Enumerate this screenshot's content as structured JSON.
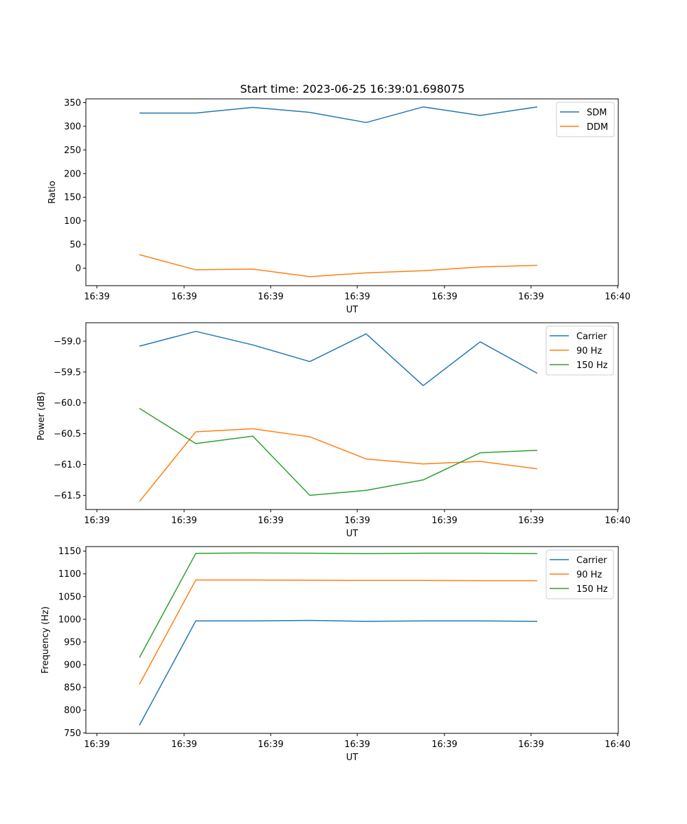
{
  "figure": {
    "title": "Start time: 2023-06-25 16:39:01.698075"
  },
  "colors": {
    "blue": "#1f77b4",
    "orange": "#ff7f0e",
    "green": "#2ca02c"
  },
  "chart_data": [
    {
      "type": "line",
      "ylabel": "Ratio",
      "xlabel": "UT",
      "x_tick_labels": [
        "16:39",
        "16:39",
        "16:39",
        "16:39",
        "16:39",
        "16:39",
        "16:39",
        "16:40"
      ],
      "y_ticks": [
        0,
        50,
        100,
        150,
        200,
        250,
        300,
        350
      ],
      "y_tick_labels": [
        "0",
        "50",
        "100",
        "150",
        "200",
        "250",
        "300",
        "350"
      ],
      "ylim": [
        -37,
        358
      ],
      "legend": "top-right",
      "grid": false,
      "series": [
        {
          "name": "SDM",
          "color": "#1f77b4",
          "values": [
            328,
            328,
            340,
            329.5,
            308,
            341,
            323,
            341
          ]
        },
        {
          "name": "DDM",
          "color": "#ff7f0e",
          "values": [
            28.5,
            -3.5,
            -2,
            -18,
            -10,
            -5.5,
            2.5,
            6
          ]
        }
      ]
    },
    {
      "type": "line",
      "ylabel": "Power (dB)",
      "xlabel": "UT",
      "x_tick_labels": [
        "16:39",
        "16:39",
        "16:39",
        "16:39",
        "16:39",
        "16:39",
        "16:39",
        "16:40"
      ],
      "y_ticks": [
        -59.0,
        -59.5,
        -60.0,
        -60.5,
        -61.0,
        -61.5
      ],
      "y_tick_labels": [
        "−59.0",
        "−59.5",
        "−60.0",
        "−60.5",
        "−61.0",
        "−61.5"
      ],
      "ylim": [
        -61.73,
        -58.7
      ],
      "legend": "top-right",
      "grid": false,
      "series": [
        {
          "name": "Carrier",
          "color": "#1f77b4",
          "values": [
            -59.08,
            -58.84,
            -59.06,
            -59.33,
            -58.88,
            -59.72,
            -59.01,
            -59.52
          ]
        },
        {
          "name": "90 Hz",
          "color": "#ff7f0e",
          "values": [
            -61.6,
            -60.47,
            -60.42,
            -60.55,
            -60.91,
            -60.99,
            -60.95,
            -61.07
          ]
        },
        {
          "name": "150 Hz",
          "color": "#2ca02c",
          "values": [
            -60.09,
            -60.66,
            -60.54,
            -61.5,
            -61.42,
            -61.25,
            -60.81,
            -60.77
          ]
        }
      ]
    },
    {
      "type": "line",
      "ylabel": "Frequency (Hz)",
      "xlabel": "UT",
      "x_tick_labels": [
        "16:39",
        "16:39",
        "16:39",
        "16:39",
        "16:39",
        "16:39",
        "16:39",
        "16:40"
      ],
      "y_ticks": [
        750,
        800,
        850,
        900,
        950,
        1000,
        1050,
        1100,
        1150
      ],
      "y_tick_labels": [
        "750",
        "800",
        "850",
        "900",
        "950",
        "1000",
        "1050",
        "1100",
        "1150"
      ],
      "ylim": [
        749,
        1160
      ],
      "legend": "top-right",
      "grid": false,
      "series": [
        {
          "name": "Carrier",
          "color": "#1f77b4",
          "values": [
            767,
            996.5,
            996.5,
            997.5,
            995.5,
            996.5,
            996.5,
            995.5
          ]
        },
        {
          "name": "90 Hz",
          "color": "#ff7f0e",
          "values": [
            857,
            1086.5,
            1086.5,
            1086,
            1085.5,
            1085.5,
            1085,
            1085
          ]
        },
        {
          "name": "150 Hz",
          "color": "#2ca02c",
          "values": [
            916,
            1145,
            1146,
            1145.5,
            1144.5,
            1145.5,
            1145.5,
            1144.5
          ]
        }
      ]
    }
  ]
}
